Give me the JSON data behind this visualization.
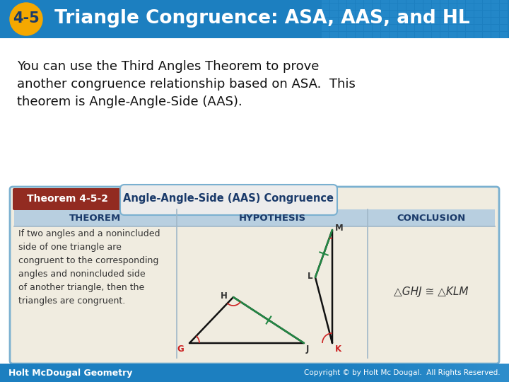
{
  "title_badge_text": "4-5",
  "title_text": " Triangle Congruence: ASA, AAS, and HL",
  "title_bg_color": "#1c7fc0",
  "title_badge_bg": "#f5a800",
  "title_text_color": "#ffffff",
  "body_text": "You can use the Third Angles Theorem to prove\nanother congruence relationship based on ASA.  This\ntheorem is Angle-Angle-Side (AAS).",
  "body_bg": "#ffffff",
  "theorem_header_left_bg": "#922b21",
  "theorem_header_left_text": "Theorem 4-5-2",
  "theorem_header_right_bg": "#ececec",
  "theorem_header_right_text": "Angle-Angle-Side (AAS) Congruence",
  "table_header_bg": "#b8cfe0",
  "table_header_color": "#1a3a6a",
  "col1_header": "THEOREM",
  "col2_header": "HYPOTHESIS",
  "col3_header": "CONCLUSION",
  "theorem_body_text": "If two angles and a nonincluded\nside of one triangle are\ncongruent to the corresponding\nangles and nonincluded side\nof another triangle, then the\ntriangles are congruent.",
  "conclusion_text": "△GHJ ≅ △KLM",
  "footer_bg": "#1c7fc0",
  "footer_left": "Holt McDougal Geometry",
  "footer_right": "Copyright © by Holt Mc Dougal.  All Rights Reserved.",
  "table_body_bg": "#f0ece0",
  "outer_border_color": "#7ab0d0",
  "grid_color": "#a0b8c8",
  "page_bg": "#ddeeff"
}
